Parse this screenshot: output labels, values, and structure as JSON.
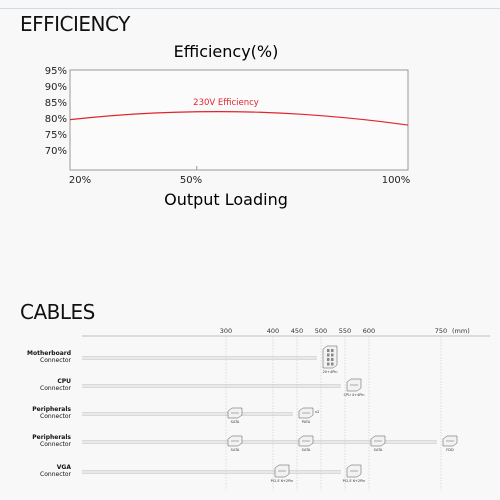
{
  "page": {
    "efficiency_title": "EFFICIENCY",
    "cables_title": "CABLES"
  },
  "colors": {
    "curve": "#e0252b",
    "frame": "#9a9a9a",
    "connector_fill": "#f2f2f2",
    "connector_stroke": "#555555",
    "cable_line": "#cfcfcf"
  },
  "chart_data": {
    "type": "line",
    "title": "Efficiency(%)",
    "xlabel": "Output Loading",
    "ylabel": "",
    "x_ticks": [
      "20%",
      "50%",
      "100%"
    ],
    "y_ticks": [
      "95%",
      "90%",
      "85%",
      "80%",
      "75%",
      "70%"
    ],
    "ylim": [
      65,
      95
    ],
    "grid": false,
    "series": [
      {
        "name": "230V Efficiency",
        "x": [
          20,
          30,
          40,
          50,
          60,
          70,
          80,
          90,
          100
        ],
        "y": [
          79.5,
          80.8,
          81.6,
          82.0,
          82.0,
          81.6,
          80.7,
          79.5,
          77.8
        ]
      }
    ]
  },
  "cables": {
    "unit": "(mm)",
    "scale_ticks": [
      300,
      400,
      450,
      500,
      550,
      600,
      750
    ],
    "rows": [
      {
        "name": "Motherboard",
        "sub": "Connector",
        "connectors": [
          {
            "at": 500,
            "label": "20+4Pin",
            "kind": "atx"
          }
        ]
      },
      {
        "name": "CPU",
        "sub": "Connector",
        "connectors": [
          {
            "at": 550,
            "label": "CPU 4+4Pin",
            "kind": "eps"
          }
        ]
      },
      {
        "name": "Peripherals",
        "sub": "Connector",
        "connectors": [
          {
            "at": 300,
            "label": "SATA",
            "kind": "sata"
          },
          {
            "at": 450,
            "label": "PATA",
            "kind": "molex",
            "note": "x2"
          }
        ]
      },
      {
        "name": "Peripherals",
        "sub": "Connector",
        "connectors": [
          {
            "at": 300,
            "label": "SATA",
            "kind": "sata"
          },
          {
            "at": 450,
            "label": "SATA",
            "kind": "sata"
          },
          {
            "at": 600,
            "label": "SATA",
            "kind": "sata"
          },
          {
            "at": 750,
            "label": "FDD",
            "kind": "fdd"
          }
        ]
      },
      {
        "name": "VGA",
        "sub": "Connector",
        "connectors": [
          {
            "at": 400,
            "label": "PCI-E 6+2Pin",
            "kind": "pcie"
          },
          {
            "at": 550,
            "label": "PCI-E 6+2Pin",
            "kind": "pcie"
          }
        ]
      }
    ]
  }
}
